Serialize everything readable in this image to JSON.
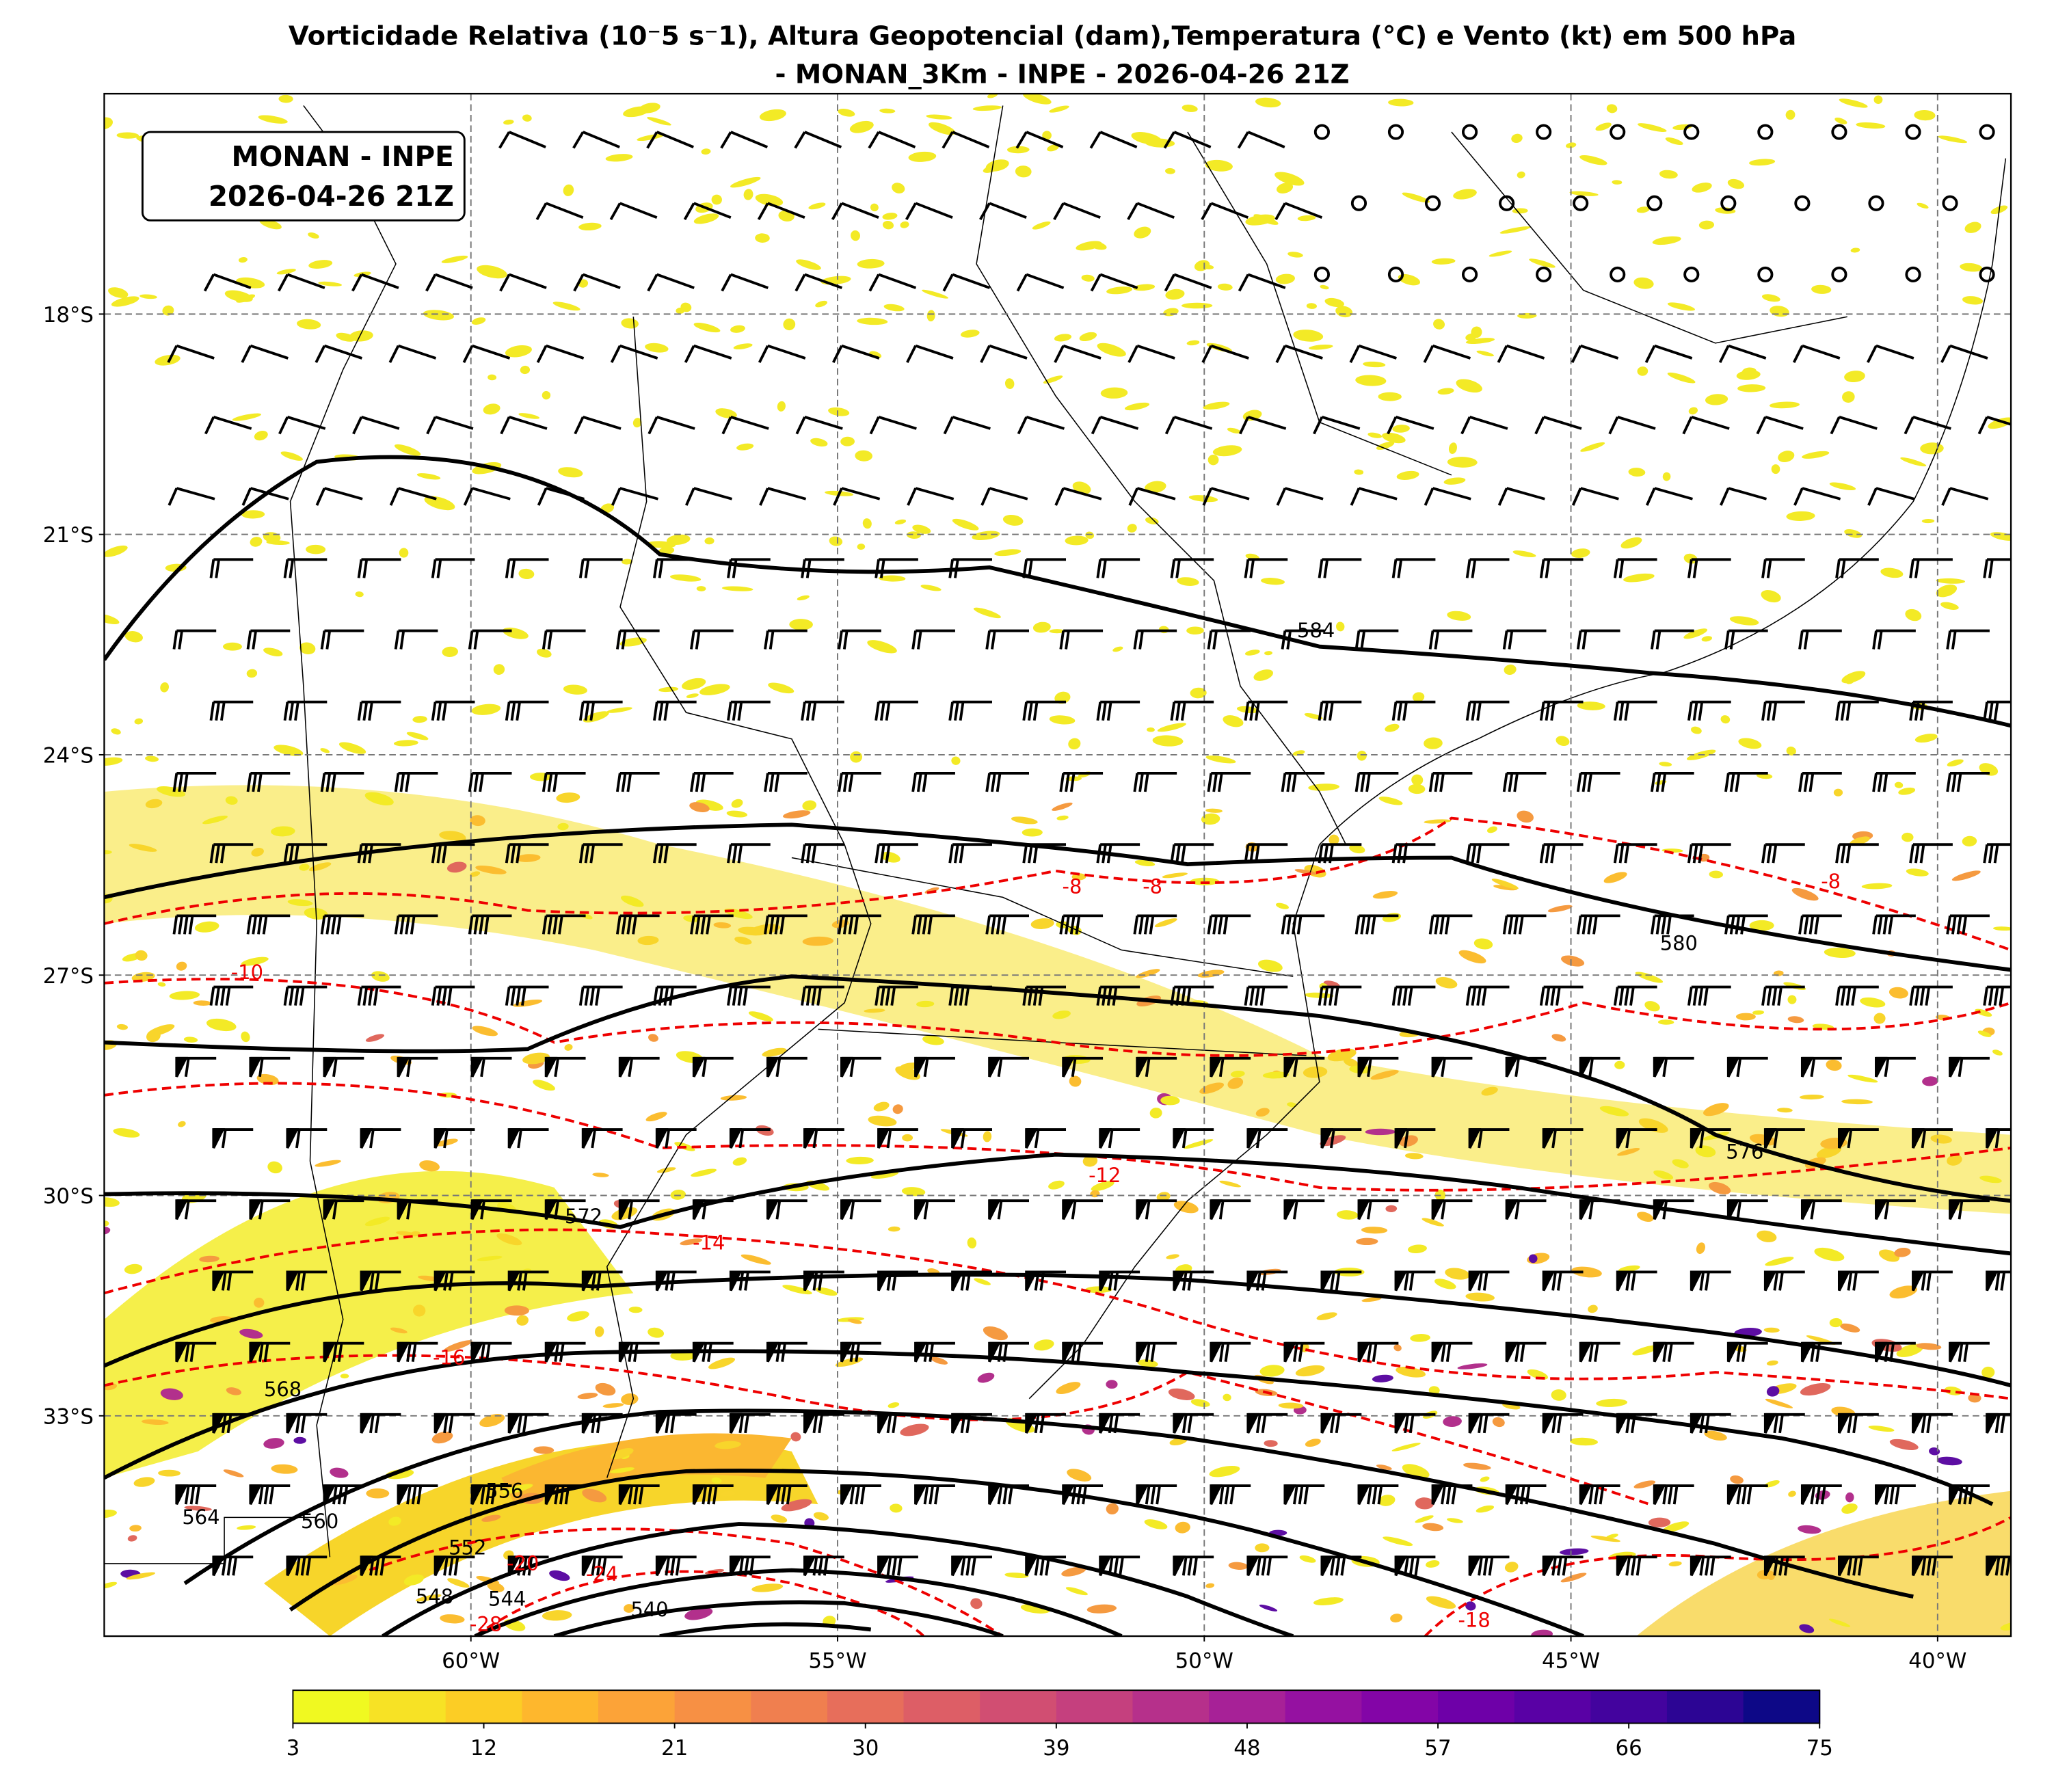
{
  "title_lines": [
    "Vorticidade Relativa (10⁻5 s⁻1), Altura Geopotencial (dam),Temperatura (°C) e Vento (kt) em 500 hPa",
    "- MONAN_3Km - INPE - 2026-04-26 21Z"
  ],
  "label_box": [
    "MONAN - INPE",
    "2026-04-26 21Z"
  ],
  "map": {
    "xlim": [
      -65,
      -39
    ],
    "ylim": [
      -36,
      -15
    ],
    "lat_ticks": [
      {
        "value": -18,
        "label": "18°S"
      },
      {
        "value": -21,
        "label": "21°S"
      },
      {
        "value": -24,
        "label": "24°S"
      },
      {
        "value": -27,
        "label": "27°S"
      },
      {
        "value": -30,
        "label": "30°S"
      },
      {
        "value": -33,
        "label": "33°S"
      }
    ],
    "lon_ticks": [
      {
        "value": -60,
        "label": "60°W"
      },
      {
        "value": -55,
        "label": "55°W"
      },
      {
        "value": -50,
        "label": "50°W"
      },
      {
        "value": -45,
        "label": "45°W"
      },
      {
        "value": -40,
        "label": "40°W"
      }
    ],
    "grid": true
  },
  "height_labels": [
    "584",
    "580",
    "576",
    "572",
    "568",
    "564",
    "560",
    "556",
    "552",
    "548",
    "544",
    "540"
  ],
  "temperature_labels": [
    "-8",
    "-8",
    "-8",
    "-10",
    "-12",
    "-14",
    "-16",
    "-18",
    "-20",
    "-24",
    "-28"
  ],
  "colorbar": {
    "lim": [
      3,
      75
    ],
    "ticks": [
      3,
      12,
      21,
      30,
      39,
      48,
      57,
      66,
      75
    ],
    "colors": [
      "#f0f921",
      "#f7e225",
      "#fccd25",
      "#feb72d",
      "#fca338",
      "#f79044",
      "#f07f4f",
      "#e76e5b",
      "#dd5e66",
      "#d14e72",
      "#c5407e",
      "#b6308b",
      "#a72197",
      "#9511a1",
      "#8305a7",
      "#6e00a8",
      "#5901a5",
      "#43039e",
      "#2c0594",
      "#0d0887"
    ]
  }
}
